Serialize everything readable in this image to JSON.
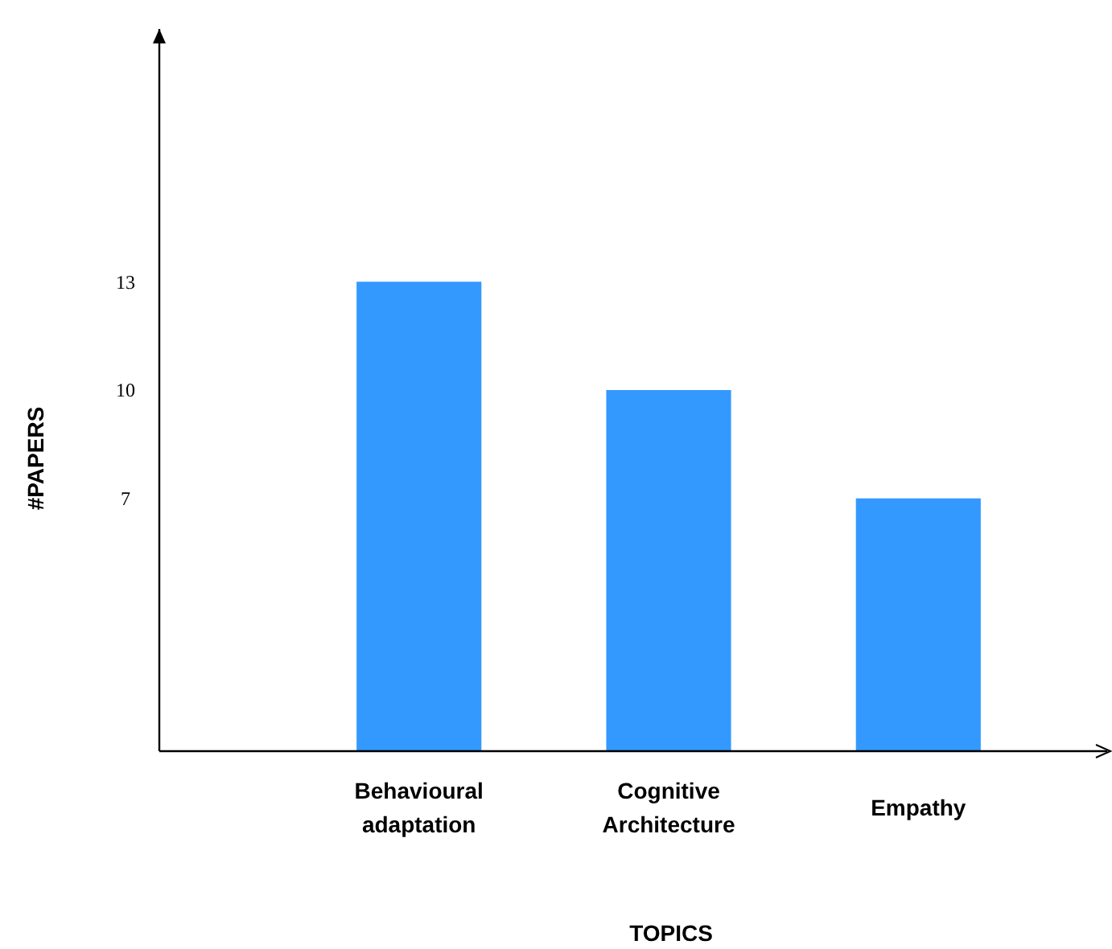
{
  "chart_data": {
    "type": "bar",
    "xlabel": "TOPICS",
    "ylabel": "#PAPERS",
    "categories": [
      "Behavioural adaptation",
      "Cognitive Architecture",
      "Empathy"
    ],
    "values": [
      13,
      10,
      7
    ],
    "color": "#3399ff",
    "ylim": [
      0,
      20
    ],
    "yticks": [
      7,
      10,
      13
    ],
    "grid": false
  }
}
